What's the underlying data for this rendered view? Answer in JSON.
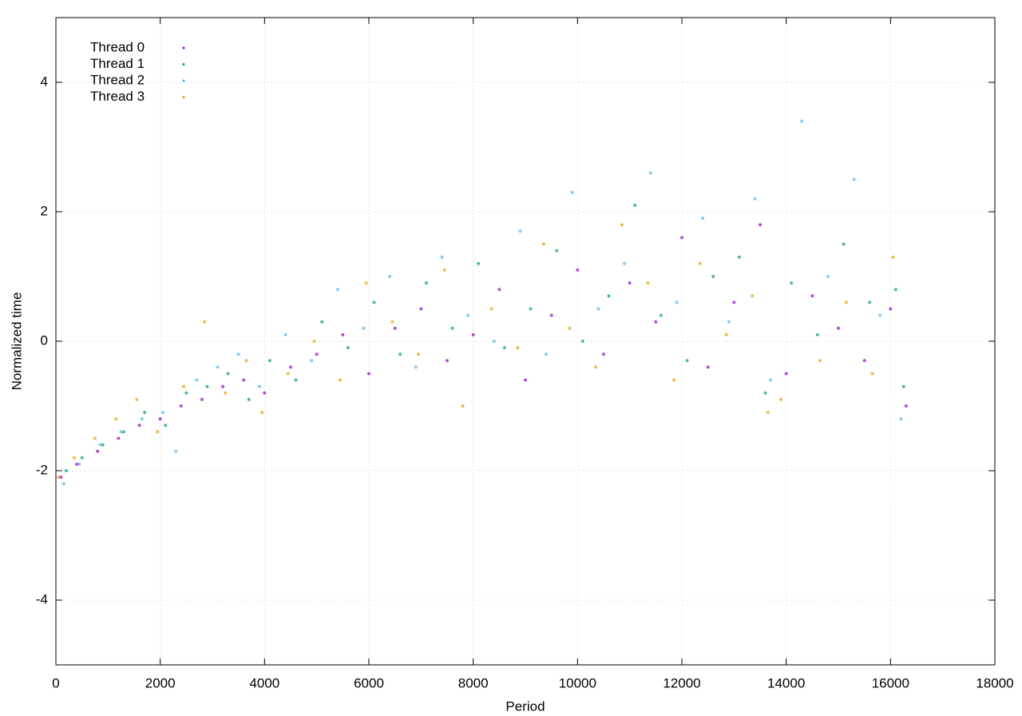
{
  "chart_data": {
    "type": "scatter",
    "xlabel": "Period",
    "ylabel": "Normalized time",
    "xlim": [
      0,
      18000
    ],
    "ylim": [
      -5,
      5
    ],
    "xticks": [
      0,
      2000,
      4000,
      6000,
      8000,
      10000,
      12000,
      14000,
      16000,
      18000
    ],
    "yticks": [
      -4,
      -2,
      0,
      2,
      4
    ],
    "grid": true,
    "legend": "top-left",
    "series": [
      {
        "name": "Thread 0",
        "color": "#9400d3",
        "x": [
          100,
          400,
          800,
          1200,
          1600,
          2000,
          2400,
          2800,
          3200,
          3600,
          4000,
          4500,
          5000,
          5500,
          6000,
          6500,
          7000,
          7500,
          8000,
          8500,
          9000,
          9500,
          10000,
          10500,
          11000,
          11500,
          12000,
          12500,
          13000,
          13500,
          14000,
          14500,
          15000,
          15500,
          16000,
          16300
        ],
        "values": [
          -2.1,
          -1.9,
          -1.7,
          -1.5,
          -1.3,
          -1.2,
          -1.0,
          -0.9,
          -0.7,
          -0.6,
          -0.8,
          -0.4,
          -0.2,
          0.1,
          -0.5,
          0.2,
          0.5,
          -0.3,
          0.1,
          0.8,
          -0.6,
          0.4,
          1.1,
          -0.2,
          0.9,
          0.3,
          1.6,
          -0.4,
          0.6,
          1.8,
          -0.5,
          0.7,
          0.2,
          -0.3,
          0.5,
          -1.0
        ]
      },
      {
        "name": "Thread 1",
        "color": "#009e73",
        "x": [
          200,
          500,
          900,
          1300,
          1700,
          2100,
          2500,
          2900,
          3300,
          3700,
          4100,
          4600,
          5100,
          5600,
          6100,
          6600,
          7100,
          7600,
          8100,
          8600,
          9100,
          9600,
          10100,
          10600,
          11100,
          11600,
          12100,
          12600,
          13100,
          13600,
          14100,
          14600,
          15100,
          15600,
          16100,
          16250
        ],
        "values": [
          -2.0,
          -1.8,
          -1.6,
          -1.4,
          -1.1,
          -1.3,
          -0.8,
          -0.7,
          -0.5,
          -0.9,
          -0.3,
          -0.6,
          0.3,
          -0.1,
          0.6,
          -0.2,
          0.9,
          0.2,
          1.2,
          -0.1,
          0.5,
          1.4,
          0.0,
          0.7,
          2.1,
          0.4,
          -0.3,
          1.0,
          1.3,
          -0.8,
          0.9,
          0.1,
          1.5,
          0.6,
          0.8,
          -0.7
        ]
      },
      {
        "name": "Thread 2",
        "color": "#56b4e9",
        "x": [
          150,
          450,
          850,
          1250,
          1650,
          2050,
          2300,
          2700,
          3100,
          3500,
          3900,
          4400,
          4900,
          5400,
          5900,
          6400,
          6900,
          7400,
          7900,
          8400,
          8900,
          9400,
          9900,
          10400,
          10900,
          11400,
          11900,
          12400,
          12900,
          13400,
          13700,
          14300,
          14800,
          15300,
          15800,
          16200
        ],
        "values": [
          -2.2,
          -1.9,
          -1.6,
          -1.4,
          -1.2,
          -1.1,
          -1.7,
          -0.6,
          -0.4,
          -0.2,
          -0.7,
          0.1,
          -0.3,
          0.8,
          0.2,
          1.0,
          -0.4,
          1.3,
          0.4,
          0.0,
          1.7,
          -0.2,
          2.3,
          0.5,
          1.2,
          2.6,
          0.6,
          1.9,
          0.3,
          2.2,
          -0.6,
          3.4,
          1.0,
          2.5,
          0.4,
          -1.2
        ]
      },
      {
        "name": "Thread 3",
        "color": "#e69f00",
        "x": [
          50,
          350,
          750,
          1150,
          1550,
          1950,
          2450,
          2850,
          3250,
          3650,
          3950,
          4450,
          4950,
          5450,
          5950,
          6450,
          6950,
          7450,
          7800,
          8350,
          8850,
          9350,
          9850,
          10350,
          10850,
          11350,
          11850,
          12350,
          12850,
          13350,
          13650,
          13900,
          14650,
          15150,
          15650,
          16050
        ],
        "values": [
          -2.1,
          -1.8,
          -1.5,
          -1.2,
          -0.9,
          -1.4,
          -0.7,
          0.3,
          -0.8,
          -0.3,
          -1.1,
          -0.5,
          0.0,
          -0.6,
          0.9,
          0.3,
          -0.2,
          1.1,
          -1.0,
          0.5,
          -0.1,
          1.5,
          0.2,
          -0.4,
          1.8,
          0.9,
          -0.6,
          1.2,
          0.1,
          0.7,
          -1.1,
          -0.9,
          -0.3,
          0.6,
          -0.5,
          1.3
        ]
      }
    ]
  }
}
